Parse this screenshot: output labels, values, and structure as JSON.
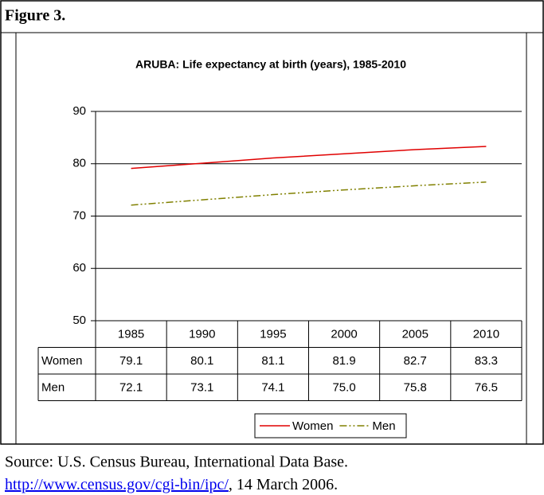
{
  "figure_title": "Figure 3.",
  "chart_data": {
    "type": "line",
    "title": "ARUBA: Life expectancy at birth (years), 1985-2010",
    "categories": [
      "1985",
      "1990",
      "1995",
      "2000",
      "2005",
      "2010"
    ],
    "series": [
      {
        "name": "Women",
        "color": "#e00000",
        "dash": "solid",
        "values": [
          79.1,
          80.1,
          81.1,
          81.9,
          82.7,
          83.3
        ]
      },
      {
        "name": "Men",
        "color": "#808000",
        "dash": "dashdot",
        "values": [
          72.1,
          73.1,
          74.1,
          75.0,
          75.8,
          76.5
        ],
        "value_labels": [
          "72.1",
          "73.1",
          "74.1",
          "75.0",
          "75.8",
          "76.5"
        ]
      }
    ],
    "ylim": [
      50,
      90
    ],
    "yticks": [
      50,
      60,
      70,
      80,
      90
    ],
    "grid": true,
    "legend": "bottom"
  },
  "source": {
    "text": "Source: U.S. Census Bureau, International Data Base.",
    "link": "http://www.census.gov/cgi-bin/ipc/",
    "date": ", 14 March 2006."
  }
}
